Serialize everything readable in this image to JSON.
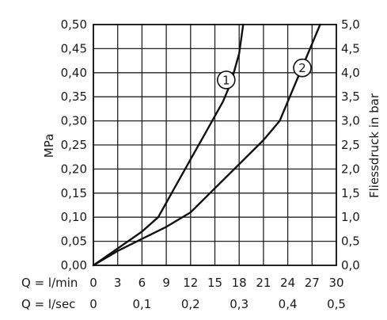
{
  "chart_data": {
    "type": "line",
    "grid": true,
    "x_ticks_flow_min": [
      "0",
      "3",
      "6",
      "9",
      "12",
      "15",
      "18",
      "21",
      "24",
      "27",
      "30"
    ],
    "x_ticks_flow_sec": [
      "0",
      "0,1",
      "0,2",
      "0,3",
      "0,4",
      "0,5"
    ],
    "x_label_min": "Q = l/min",
    "x_label_sec": "Q = l/sec",
    "xlim": [
      0,
      30
    ],
    "y_left_ticks": [
      "0,00",
      "0,05",
      "0,10",
      "0,15",
      "0,20",
      "0,25",
      "0,30",
      "0,35",
      "0,40",
      "0,45",
      "0,50"
    ],
    "y_right_ticks": [
      "0,0",
      "0,5",
      "1,0",
      "1,5",
      "2,0",
      "2,5",
      "3,0",
      "3,5",
      "4,0",
      "4,5",
      "5,0"
    ],
    "ylabel_left": "MPa",
    "ylabel_right": "Fliessdruck in bar",
    "ylim": [
      0,
      0.5
    ],
    "series": [
      {
        "name": "1",
        "x": [
          0,
          3,
          6,
          8,
          9,
          10,
          12,
          14,
          16,
          17,
          18,
          18.5
        ],
        "y": [
          0,
          0.035,
          0.07,
          0.1,
          0.13,
          0.16,
          0.22,
          0.28,
          0.34,
          0.38,
          0.44,
          0.5
        ]
      },
      {
        "name": "2",
        "x": [
          0,
          3,
          6,
          9,
          12,
          15,
          18,
          21,
          23,
          24,
          25,
          26,
          27,
          28
        ],
        "y": [
          0,
          0.03,
          0.055,
          0.08,
          0.11,
          0.16,
          0.21,
          0.26,
          0.3,
          0.34,
          0.38,
          0.42,
          0.46,
          0.5
        ]
      }
    ],
    "curve_labels": [
      {
        "text": "1",
        "x": 16.4,
        "y": 0.385
      },
      {
        "text": "2",
        "x": 25.8,
        "y": 0.41
      }
    ]
  }
}
